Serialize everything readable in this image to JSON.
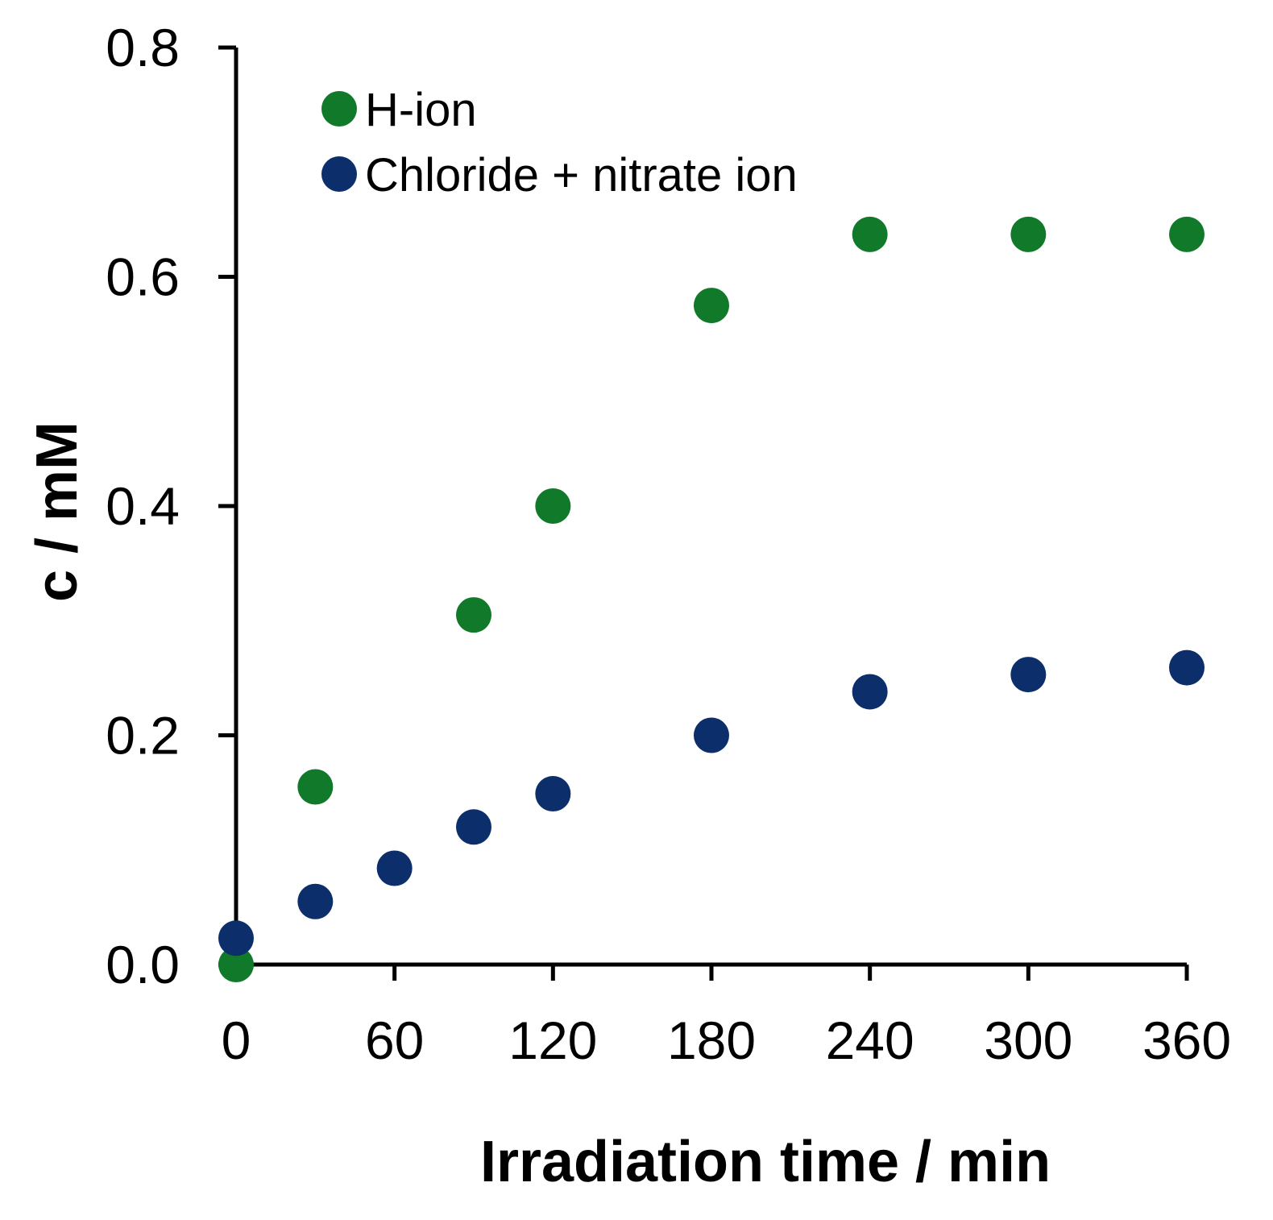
{
  "chart_data": {
    "type": "scatter",
    "title": "",
    "xlabel": "Irradiation time / min",
    "ylabel": "c / mM",
    "xlim": [
      0,
      360
    ],
    "ylim": [
      0,
      0.8
    ],
    "xticks": [
      0,
      60,
      120,
      180,
      240,
      300,
      360
    ],
    "xtick_labels": [
      "0",
      "60",
      "120",
      "180",
      "240",
      "300",
      "360"
    ],
    "yticks": [
      0.0,
      0.2,
      0.4,
      0.6,
      0.8
    ],
    "ytick_labels": [
      "0.0",
      "0.2",
      "0.4",
      "0.6",
      "0.8"
    ],
    "grid": false,
    "legend_position": "top-left",
    "series": [
      {
        "name": "H-ion",
        "color": "#117a2a",
        "x": [
          0,
          30,
          90,
          120,
          180,
          240,
          300,
          360
        ],
        "y": [
          0.0,
          0.155,
          0.305,
          0.4,
          0.575,
          0.637,
          0.637,
          0.637
        ]
      },
      {
        "name": "Chloride + nitrate ion",
        "color": "#0c2e6b",
        "x": [
          0,
          30,
          60,
          90,
          120,
          180,
          240,
          300,
          360
        ],
        "y": [
          0.023,
          0.055,
          0.084,
          0.12,
          0.149,
          0.2,
          0.238,
          0.253,
          0.259
        ]
      }
    ]
  }
}
